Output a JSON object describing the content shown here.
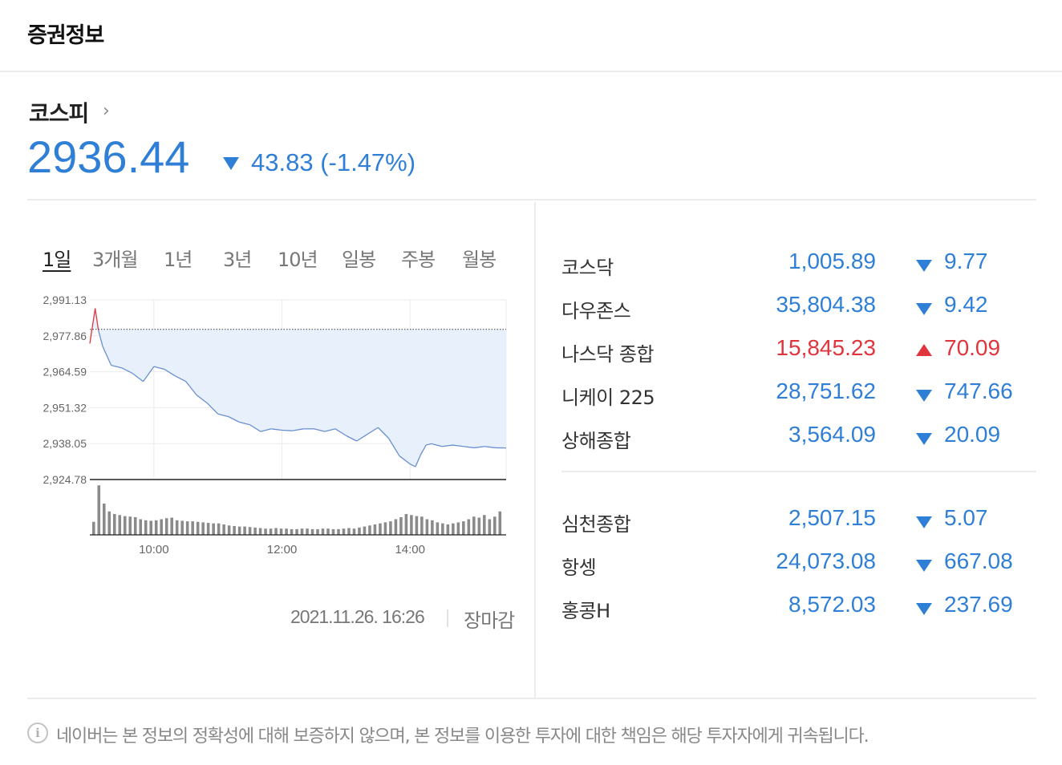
{
  "header": {
    "title": "증권정보"
  },
  "index": {
    "name": "코스피",
    "more_icon": "chevron-right-icon",
    "value": "2936.44",
    "direction": "down",
    "change": "43.83 (-1.47%)"
  },
  "tabs": [
    "1일",
    "3개월",
    "1년",
    "3년",
    "10년",
    "일봉",
    "주봉",
    "월봉"
  ],
  "active_tab": "1일",
  "timestamp": "2021.11.26. 16:26",
  "status": "장마감",
  "markets_group1": [
    {
      "name": "코스닥",
      "value": "1,005.89",
      "direction": "down",
      "change": "9.77"
    },
    {
      "name": "다우존스",
      "value": "35,804.38",
      "direction": "down",
      "change": "9.42"
    },
    {
      "name": "나스닥 종합",
      "value": "15,845.23",
      "direction": "up",
      "change": "70.09"
    },
    {
      "name": "니케이 225",
      "value": "28,751.62",
      "direction": "down",
      "change": "747.66"
    },
    {
      "name": "상해종합",
      "value": "3,564.09",
      "direction": "down",
      "change": "20.09"
    }
  ],
  "markets_group2": [
    {
      "name": "심천종합",
      "value": "2,507.15",
      "direction": "down",
      "change": "5.07"
    },
    {
      "name": "항셍",
      "value": "24,073.08",
      "direction": "down",
      "change": "667.08"
    },
    {
      "name": "홍콩H",
      "value": "8,572.03",
      "direction": "down",
      "change": "237.69"
    }
  ],
  "disclaimer": "네이버는 본 정보의 정확성에 대해 보증하지 않으며, 본 정보를 이용한 투자에 대한 책임은 해당 투자자에게 귀속됩니다.",
  "colors": {
    "up": "#e0353d",
    "down": "#2f7fd6",
    "area_fill": "#e8f0fc",
    "line": "#6a8fd0"
  },
  "chart_data": {
    "type": "area",
    "y_tick_labels": [
      "2,991.13",
      "2,977.86",
      "2,964.59",
      "2,951.32",
      "2,938.05",
      "2,924.78"
    ],
    "x_tick_labels": [
      "10:00",
      "12:00",
      "14:00"
    ],
    "ylim": [
      2924.78,
      2991.13
    ],
    "xlim": [
      "09:00",
      "15:30"
    ],
    "previous_close": 2980.27,
    "grid": true,
    "price_series": {
      "x": [
        "09:00",
        "09:05",
        "09:08",
        "09:12",
        "09:20",
        "09:30",
        "09:40",
        "09:50",
        "10:00",
        "10:10",
        "10:20",
        "10:30",
        "10:40",
        "10:50",
        "11:00",
        "11:10",
        "11:20",
        "11:30",
        "11:40",
        "11:50",
        "12:00",
        "12:10",
        "12:20",
        "12:30",
        "12:40",
        "12:50",
        "13:00",
        "13:10",
        "13:20",
        "13:30",
        "13:40",
        "13:50",
        "14:00",
        "14:05",
        "14:10",
        "14:15",
        "14:20",
        "14:30",
        "14:40",
        "14:50",
        "15:00",
        "15:10",
        "15:20",
        "15:30"
      ],
      "values": [
        2975.0,
        2988.0,
        2980.0,
        2974.0,
        2967.0,
        2966.0,
        2964.0,
        2961.0,
        2966.5,
        2965.5,
        2963.0,
        2961.0,
        2956.0,
        2953.0,
        2949.0,
        2948.0,
        2946.0,
        2945.0,
        2942.5,
        2943.5,
        2943.0,
        2942.8,
        2943.5,
        2943.5,
        2942.5,
        2943.5,
        2941.0,
        2939.0,
        2941.5,
        2944.0,
        2940.0,
        2933.5,
        2930.5,
        2929.5,
        2934.0,
        2937.5,
        2938.0,
        2937.0,
        2937.5,
        2937.0,
        2936.5,
        2937.0,
        2936.5,
        2936.44
      ]
    },
    "volume_series": {
      "values": [
        0.25,
        0.95,
        0.6,
        0.45,
        0.4,
        0.38,
        0.36,
        0.35,
        0.34,
        0.3,
        0.28,
        0.27,
        0.28,
        0.3,
        0.32,
        0.33,
        0.28,
        0.27,
        0.26,
        0.26,
        0.25,
        0.24,
        0.23,
        0.22,
        0.22,
        0.2,
        0.18,
        0.17,
        0.16,
        0.16,
        0.15,
        0.14,
        0.13,
        0.12,
        0.12,
        0.13,
        0.12,
        0.12,
        0.11,
        0.11,
        0.12,
        0.12,
        0.11,
        0.11,
        0.12,
        0.12,
        0.11,
        0.11,
        0.12,
        0.13,
        0.12,
        0.14,
        0.16,
        0.18,
        0.2,
        0.22,
        0.24,
        0.26,
        0.3,
        0.34,
        0.4,
        0.38,
        0.36,
        0.35,
        0.3,
        0.28,
        0.24,
        0.22,
        0.2,
        0.22,
        0.24,
        0.26,
        0.3,
        0.35,
        0.33,
        0.38,
        0.3,
        0.35,
        0.45
      ]
    }
  }
}
